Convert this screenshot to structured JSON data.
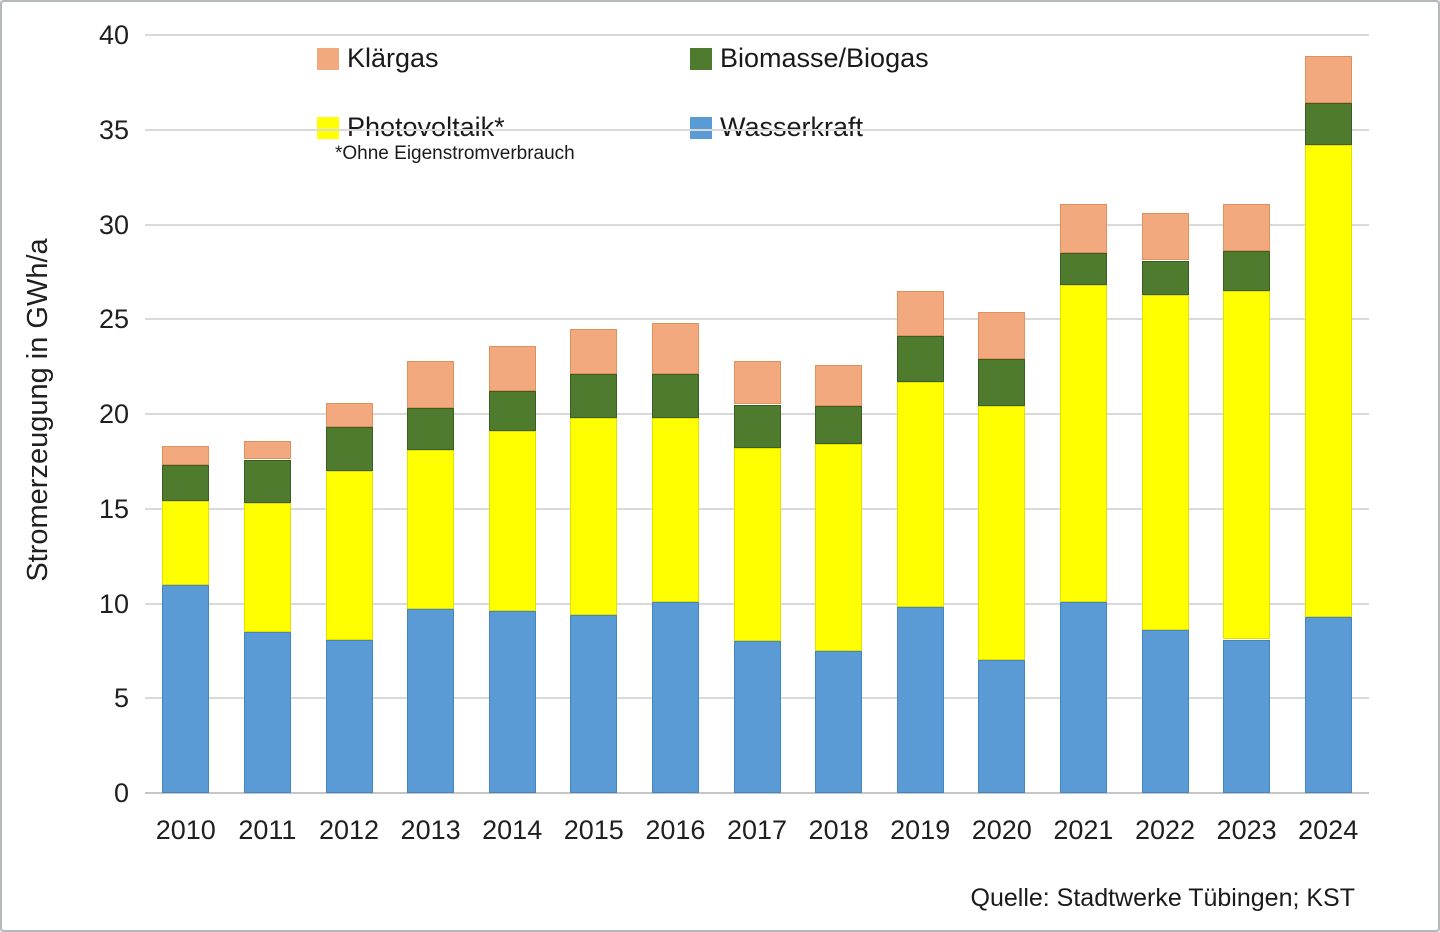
{
  "chart_data": {
    "type": "bar",
    "stacked": true,
    "title": "",
    "xlabel": "",
    "ylabel": "Stromerzeugung in GWh/a",
    "ylim": [
      0,
      40
    ],
    "yticks": [
      0,
      5,
      10,
      15,
      20,
      25,
      30,
      35,
      40
    ],
    "grid": true,
    "legend_position": "top-inside-2x2",
    "categories": [
      "2010",
      "2011",
      "2012",
      "2013",
      "2014",
      "2015",
      "2016",
      "2017",
      "2018",
      "2019",
      "2020",
      "2021",
      "2022",
      "2023",
      "2024"
    ],
    "series": [
      {
        "name": "Wasserkraft",
        "color": "#5B9BD5",
        "border": "#4385C0",
        "values": [
          11.0,
          8.5,
          8.1,
          9.7,
          9.6,
          9.4,
          10.1,
          8.0,
          7.5,
          9.8,
          7.0,
          10.1,
          8.6,
          8.1,
          9.3
        ]
      },
      {
        "name": "Photovoltaik*",
        "color": "#FFFF00",
        "border": "#E3E000",
        "values": [
          4.4,
          6.8,
          8.9,
          8.4,
          9.5,
          10.4,
          9.7,
          10.2,
          10.9,
          11.9,
          13.4,
          16.7,
          17.7,
          18.4,
          24.9
        ]
      },
      {
        "name": "Biomasse/Biogas",
        "color": "#4F7B2F",
        "border": "#3B5D21",
        "values": [
          1.9,
          2.3,
          2.3,
          2.2,
          2.1,
          2.3,
          2.3,
          2.3,
          2.0,
          2.4,
          2.5,
          1.7,
          1.8,
          2.1,
          2.2
        ]
      },
      {
        "name": "Klärgas",
        "color": "#F3A97E",
        "border": "#E08F5F",
        "values": [
          1.0,
          1.0,
          1.3,
          2.5,
          2.4,
          2.4,
          2.7,
          2.3,
          2.2,
          2.4,
          2.5,
          2.6,
          2.5,
          2.5,
          2.5
        ]
      }
    ],
    "footnote": "*Ohne Eigenstromverbrauch",
    "source": "Quelle: Stadtwerke Tübingen; KST"
  },
  "legend": {
    "items": [
      {
        "label": "Klärgas",
        "color": "#F3A97E"
      },
      {
        "label": "Biomasse/Biogas",
        "color": "#4F7B2F"
      },
      {
        "label": "Photovoltaik*",
        "color": "#FFFF00"
      },
      {
        "label": "Wasserkraft",
        "color": "#5B9BD5"
      }
    ]
  }
}
